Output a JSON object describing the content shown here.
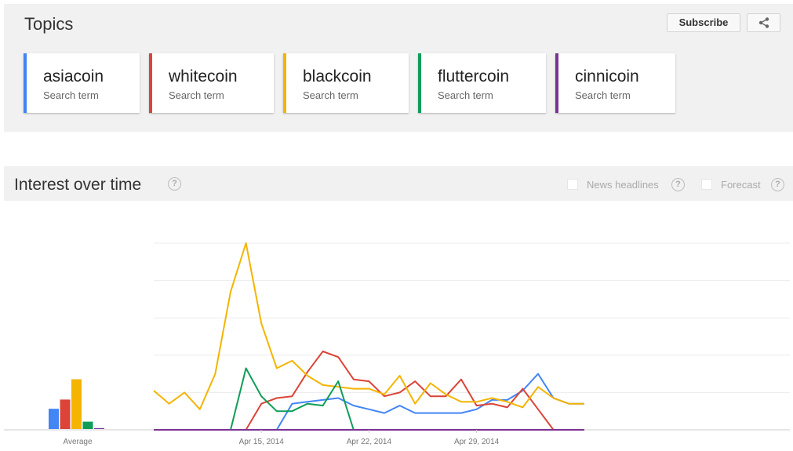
{
  "topics": {
    "title": "Topics",
    "subscribe_label": "Subscribe",
    "share_icon": "share-icon",
    "terms": [
      {
        "name": "asiacoin",
        "sub": "Search term",
        "color": "#4285f4"
      },
      {
        "name": "whitecoin",
        "sub": "Search term",
        "color": "#db4437"
      },
      {
        "name": "blackcoin",
        "sub": "Search term",
        "color": "#f4b400"
      },
      {
        "name": "fluttercoin",
        "sub": "Search term",
        "color": "#0f9d58"
      },
      {
        "name": "cinnicoin",
        "sub": "Search term",
        "color": "#7b3294"
      }
    ]
  },
  "interest": {
    "title": "Interest over time",
    "help_symbol": "?",
    "news_headlines_label": "News headlines",
    "forecast_label": "Forecast"
  },
  "chart_data": {
    "type": "line",
    "x": [
      "Apr 8, 2014",
      "Apr 9, 2014",
      "Apr 10, 2014",
      "Apr 11, 2014",
      "Apr 12, 2014",
      "Apr 13, 2014",
      "Apr 14, 2014",
      "Apr 15, 2014",
      "Apr 16, 2014",
      "Apr 17, 2014",
      "Apr 18, 2014",
      "Apr 19, 2014",
      "Apr 20, 2014",
      "Apr 21, 2014",
      "Apr 22, 2014",
      "Apr 23, 2014",
      "Apr 24, 2014",
      "Apr 25, 2014",
      "Apr 26, 2014",
      "Apr 27, 2014",
      "Apr 28, 2014",
      "Apr 29, 2014",
      "Apr 30, 2014",
      "May 1, 2014",
      "May 2, 2014",
      "May 3, 2014",
      "May 4, 2014",
      "May 5, 2014",
      "May 6, 2014"
    ],
    "x_tick_labels": [
      {
        "label": "Apr 15, 2014",
        "index": 7
      },
      {
        "label": "Apr 22, 2014",
        "index": 14
      },
      {
        "label": "Apr 29, 2014",
        "index": 21
      }
    ],
    "ylim": [
      0,
      100
    ],
    "grid": true,
    "series": [
      {
        "name": "asiacoin",
        "color": "#4285f4",
        "values": [
          0,
          0,
          0,
          0,
          0,
          0,
          0,
          0,
          0,
          14,
          15,
          16,
          17,
          13,
          11,
          9,
          13,
          9,
          9,
          9,
          9,
          11,
          16,
          16,
          21,
          30,
          17,
          14,
          14
        ]
      },
      {
        "name": "whitecoin",
        "color": "#db4437",
        "values": [
          0,
          0,
          0,
          0,
          0,
          0,
          0,
          14,
          17,
          18,
          31,
          42,
          39,
          27,
          26,
          18,
          20,
          26,
          18,
          18,
          27,
          13,
          14,
          12,
          22,
          11,
          0,
          0,
          0
        ]
      },
      {
        "name": "blackcoin",
        "color": "#f4b400",
        "values": [
          21,
          14,
          20,
          11,
          30,
          74,
          100,
          57,
          33,
          37,
          29,
          24,
          23,
          22,
          22,
          19,
          29,
          14,
          25,
          19,
          15,
          15,
          17,
          15,
          12,
          23,
          17,
          14,
          14
        ]
      },
      {
        "name": "fluttercoin",
        "color": "#0f9d58",
        "values": [
          0,
          0,
          0,
          0,
          0,
          0,
          33,
          18,
          10,
          10,
          14,
          13,
          26,
          0,
          0,
          0,
          0,
          0,
          0,
          0,
          0,
          0,
          0,
          0,
          0,
          0,
          0,
          0,
          0
        ]
      },
      {
        "name": "cinnicoin",
        "color": "#7b3294",
        "values": [
          0,
          0,
          0,
          0,
          0,
          0,
          0,
          0,
          0,
          0,
          0,
          0,
          0,
          0,
          0,
          0,
          0,
          0,
          0,
          0,
          0,
          0,
          0,
          0,
          0,
          0,
          0,
          0,
          0
        ]
      }
    ],
    "average": {
      "label": "Average",
      "values": [
        11,
        16,
        27,
        4,
        0.5
      ]
    }
  }
}
